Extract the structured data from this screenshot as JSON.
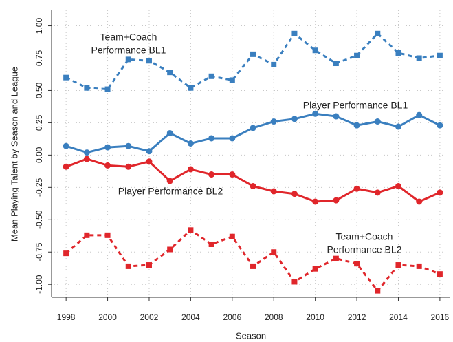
{
  "chart_data": {
    "type": "line",
    "x_label": "Season",
    "y_label": "Mean Playing Talent by Season and League",
    "x": [
      1998,
      1999,
      2000,
      2001,
      2002,
      2003,
      2004,
      2005,
      2006,
      2007,
      2008,
      2009,
      2010,
      2011,
      2012,
      2013,
      2014,
      2015,
      2016
    ],
    "xlim": [
      1997.3,
      2016.5
    ],
    "xticks": [
      1998,
      2000,
      2002,
      2004,
      2006,
      2008,
      2010,
      2012,
      2014,
      2016
    ],
    "ylim": [
      -1.1,
      1.12
    ],
    "yticks": [
      {
        "value": 1,
        "label": "1.00"
      },
      0.75,
      {
        "value": 0.5,
        "label": "0.50"
      },
      0.25,
      {
        "value": 0,
        "label": "0.00"
      },
      -0.25,
      {
        "value": -0.5,
        "label": "-0.50"
      },
      -0.75,
      {
        "value": -1,
        "label": "-1.00"
      }
    ],
    "grid": true,
    "series": [
      {
        "label": [
          "Team+Coach",
          "Performance BL1"
        ],
        "color": "#3a7fbf",
        "dashed": true,
        "marker": "square",
        "values": [
          0.6,
          0.52,
          0.51,
          0.74,
          0.73,
          0.64,
          0.52,
          0.61,
          0.58,
          0.78,
          0.7,
          0.94,
          0.81,
          0.71,
          0.77,
          0.94,
          0.79,
          0.75,
          0.77
        ]
      },
      {
        "label": [
          "Player Performance BL1"
        ],
        "color": "#3a7fbf",
        "dashed": false,
        "marker": "circle",
        "values": [
          0.07,
          0.02,
          0.06,
          0.07,
          0.03,
          0.17,
          0.09,
          0.13,
          0.13,
          0.21,
          0.26,
          0.28,
          0.32,
          0.3,
          0.23,
          0.26,
          0.22,
          0.31,
          0.23
        ]
      },
      {
        "label": [
          "Player Performance BL2"
        ],
        "color": "#e0262b",
        "dashed": false,
        "marker": "circle",
        "values": [
          -0.09,
          -0.03,
          -0.08,
          -0.09,
          -0.05,
          -0.2,
          -0.11,
          -0.15,
          -0.15,
          -0.24,
          -0.28,
          -0.3,
          -0.36,
          -0.35,
          -0.26,
          -0.29,
          -0.24,
          -0.36,
          -0.29
        ]
      },
      {
        "label": [
          "Team+Coach",
          "Performance BL2"
        ],
        "color": "#e0262b",
        "dashed": true,
        "marker": "square",
        "values": [
          -0.76,
          -0.62,
          -0.62,
          -0.86,
          -0.85,
          -0.73,
          -0.58,
          -0.69,
          -0.63,
          -0.86,
          -0.75,
          -0.98,
          -0.88,
          -0.8,
          -0.84,
          -1.05,
          -0.85,
          -0.86,
          -0.92
        ]
      }
    ]
  }
}
